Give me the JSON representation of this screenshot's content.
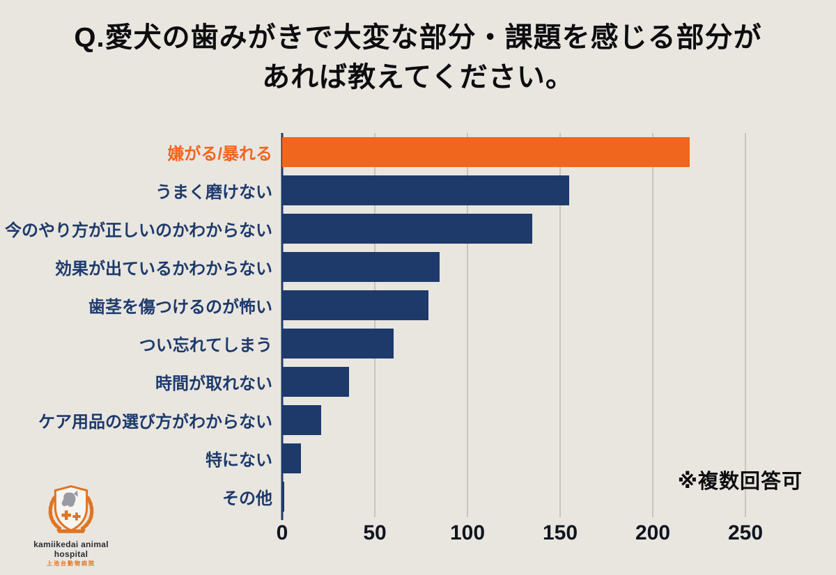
{
  "title": {
    "line1": "Q.愛犬の歯みがきで大変な部分・課題を感じる部分が",
    "line2": "あれば教えてください。"
  },
  "note": "※複数回答可",
  "logo": {
    "name": "kamiikedai animal hospital",
    "sub": "上池台動物病院"
  },
  "colors": {
    "background": "#e9e6e0",
    "highlight": "#f0661f",
    "bar": "#1d3a6b",
    "grid": "#c9c4bc",
    "axis": "#1d3a6b"
  },
  "chart_data": {
    "type": "bar",
    "orientation": "horizontal",
    "title": "Q.愛犬の歯みがきで大変な部分・課題を感じる部分があれば教えてください。",
    "categories": [
      "嫌がる/暴れる",
      "うまく磨けない",
      "今のやり方が正しいのかわからない",
      "効果が出ているかわからない",
      "歯茎を傷つけるのが怖い",
      "つい忘れてしまう",
      "時間が取れない",
      "ケア用品の選び方がわからない",
      "特にない",
      "その他"
    ],
    "values": [
      220,
      155,
      135,
      85,
      79,
      60,
      36,
      21,
      10,
      1
    ],
    "highlight_index": 0,
    "xlim": [
      0,
      250
    ],
    "xticks": [
      0,
      50,
      100,
      150,
      200,
      250
    ],
    "grid": true,
    "legend": false,
    "annotation": "※複数回答可"
  }
}
